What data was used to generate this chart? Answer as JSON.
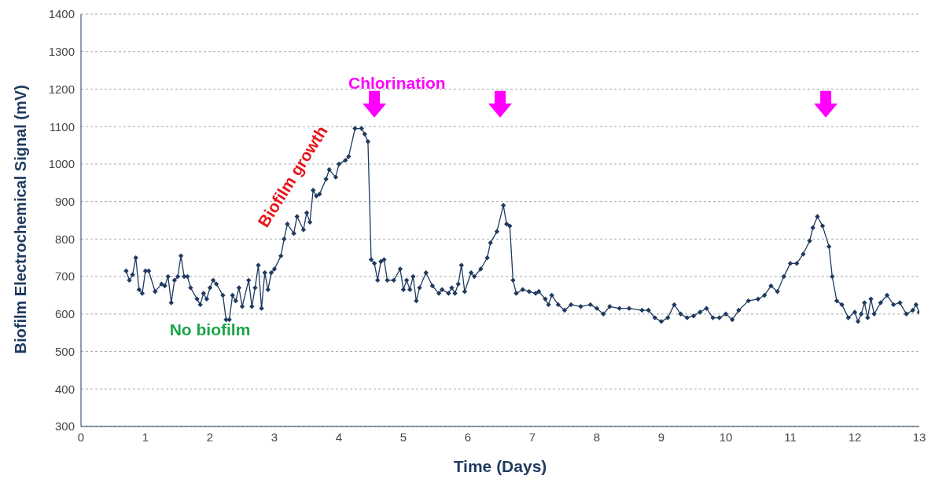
{
  "chart_data": {
    "type": "line",
    "xlabel": "Time (Days)",
    "ylabel": "Biofilm Electrochemical Signal (mV)",
    "xlim": [
      0,
      13
    ],
    "xticks": [
      0,
      1,
      2,
      3,
      4,
      5,
      6,
      7,
      8,
      9,
      10,
      11,
      12,
      13
    ],
    "ylim": [
      300,
      1400
    ],
    "yticks": [
      300,
      400,
      500,
      600,
      700,
      800,
      900,
      1000,
      1100,
      1200,
      1300,
      1400
    ],
    "grid": "y",
    "marker": "diamond",
    "line_style": "solid",
    "annotations": [
      "Chlorination",
      "Biofilm growth",
      "No biofilm"
    ],
    "series": [
      {
        "color": "#1f3a5f",
        "x": [
          0.7,
          0.75,
          0.8,
          0.85,
          0.9,
          0.95,
          1.0,
          1.05,
          1.15,
          1.25,
          1.3,
          1.35,
          1.4,
          1.45,
          1.5,
          1.55,
          1.6,
          1.65,
          1.7,
          1.8,
          1.85,
          1.9,
          1.95,
          2.0,
          2.05,
          2.1,
          2.2,
          2.25,
          2.3,
          2.35,
          2.4,
          2.45,
          2.5,
          2.6,
          2.65,
          2.7,
          2.75,
          2.8,
          2.85,
          2.9,
          2.95,
          3.0,
          3.1,
          3.15,
          3.2,
          3.3,
          3.35,
          3.45,
          3.5,
          3.55,
          3.6,
          3.65,
          3.7,
          3.8,
          3.85,
          3.95,
          4.0,
          4.1,
          4.15,
          4.25,
          4.35,
          4.4,
          4.45,
          4.5,
          4.55,
          4.6,
          4.65,
          4.7,
          4.75,
          4.85,
          4.95,
          5.0,
          5.05,
          5.1,
          5.15,
          5.2,
          5.25,
          5.35,
          5.45,
          5.55,
          5.6,
          5.7,
          5.75,
          5.8,
          5.85,
          5.9,
          5.95,
          6.05,
          6.1,
          6.2,
          6.3,
          6.35,
          6.45,
          6.55,
          6.6,
          6.65,
          6.7,
          6.75,
          6.85,
          6.95,
          7.05,
          7.1,
          7.2,
          7.25,
          7.3,
          7.4,
          7.5,
          7.6,
          7.75,
          7.9,
          8.0,
          8.1,
          8.2,
          8.35,
          8.5,
          8.7,
          8.8,
          8.9,
          9.0,
          9.1,
          9.2,
          9.3,
          9.4,
          9.5,
          9.6,
          9.7,
          9.8,
          9.9,
          10.0,
          10.1,
          10.2,
          10.35,
          10.5,
          10.6,
          10.7,
          10.8,
          10.9,
          11.0,
          11.1,
          11.2,
          11.3,
          11.35,
          11.42,
          11.5,
          11.6,
          11.65,
          11.72,
          11.8,
          11.9,
          12.0,
          12.05,
          12.1,
          12.15,
          12.2,
          12.25,
          12.3,
          12.4,
          12.5,
          12.6,
          12.7,
          12.8,
          12.9,
          12.95,
          13.0
        ],
        "values": [
          715,
          690,
          705,
          750,
          665,
          655,
          715,
          715,
          660,
          680,
          675,
          700,
          630,
          690,
          700,
          755,
          700,
          700,
          670,
          640,
          625,
          655,
          640,
          670,
          690,
          680,
          650,
          585,
          585,
          650,
          635,
          670,
          620,
          690,
          620,
          670,
          730,
          615,
          710,
          665,
          710,
          720,
          755,
          800,
          840,
          815,
          860,
          825,
          870,
          845,
          930,
          915,
          920,
          960,
          985,
          965,
          1000,
          1010,
          1020,
          1095,
          1095,
          1080,
          1060,
          745,
          735,
          690,
          740,
          745,
          690,
          690,
          720,
          665,
          690,
          665,
          700,
          635,
          670,
          710,
          675,
          655,
          665,
          655,
          670,
          655,
          680,
          730,
          660,
          710,
          700,
          720,
          750,
          790,
          820,
          890,
          840,
          835,
          690,
          655,
          665,
          660,
          655,
          660,
          640,
          625,
          650,
          625,
          610,
          625,
          620,
          625,
          615,
          600,
          620,
          615,
          615,
          610,
          610,
          590,
          580,
          590,
          625,
          600,
          590,
          595,
          605,
          615,
          590,
          590,
          600,
          585,
          610,
          635,
          640,
          650,
          675,
          660,
          700,
          735,
          735,
          760,
          795,
          830,
          860,
          835,
          780,
          700,
          635,
          625,
          590,
          605,
          580,
          600,
          630,
          590,
          640,
          600,
          630,
          650,
          625,
          630,
          600,
          610,
          625,
          605
        ]
      }
    ]
  }
}
